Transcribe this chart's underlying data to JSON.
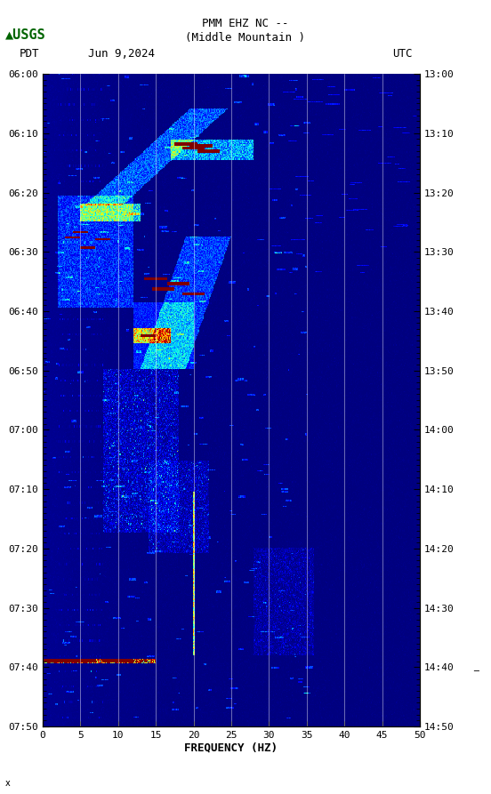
{
  "title_line1": "PMM EHZ NC --",
  "title_line2": "(Middle Mountain )",
  "label_left": "PDT",
  "label_date": "Jun 9,2024",
  "label_right": "UTC",
  "freq_label": "FREQUENCY (HZ)",
  "freq_min": 0,
  "freq_max": 50,
  "freq_ticks": [
    0,
    5,
    10,
    15,
    20,
    25,
    30,
    35,
    40,
    45,
    50
  ],
  "time_ticks_left": [
    "06:00",
    "06:10",
    "06:20",
    "06:30",
    "06:40",
    "06:50",
    "07:00",
    "07:10",
    "07:20",
    "07:30",
    "07:40",
    "07:50"
  ],
  "time_ticks_right": [
    "13:00",
    "13:10",
    "13:20",
    "13:30",
    "13:40",
    "13:50",
    "14:00",
    "14:10",
    "14:20",
    "14:30",
    "14:40",
    "14:50"
  ],
  "bg_color": "#000080",
  "vertical_lines_freq": [
    5,
    10,
    15,
    20,
    25,
    30,
    35,
    40,
    45
  ],
  "fig_width": 5.52,
  "fig_height": 8.93,
  "usgs_green": "#006400",
  "spectrogram_colormap": "jet",
  "vline_color": "white",
  "vline_lw": 0.5,
  "tick_fontsize": 8,
  "label_fontsize": 9,
  "title_fontsize": 9
}
